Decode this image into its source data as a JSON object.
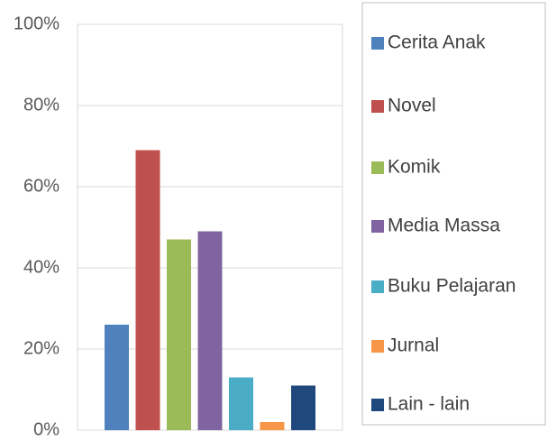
{
  "chart_data": {
    "type": "bar",
    "categories": [
      null
    ],
    "series": [
      {
        "name": "Cerita Anak",
        "color": "#4f81bd",
        "values": [
          26
        ]
      },
      {
        "name": "Novel",
        "color": "#c0504d",
        "values": [
          69
        ]
      },
      {
        "name": "Komik",
        "color": "#9bbb59",
        "values": [
          47
        ]
      },
      {
        "name": "Media Massa",
        "color": "#8064a2",
        "values": [
          49
        ]
      },
      {
        "name": "Buku Pelajaran",
        "color": "#4bacc6",
        "values": [
          13
        ]
      },
      {
        "name": "Jurnal",
        "color": "#f79646",
        "values": [
          2
        ]
      },
      {
        "name": "Lain - lain",
        "color": "#1f497d",
        "values": [
          11
        ]
      }
    ],
    "ylim": [
      0,
      100
    ],
    "yticks": [
      {
        "value": 0,
        "label": "0%"
      },
      {
        "value": 20,
        "label": "20%"
      },
      {
        "value": 40,
        "label": "40%"
      },
      {
        "value": 60,
        "label": "60%"
      },
      {
        "value": 80,
        "label": "80%"
      },
      {
        "value": 100,
        "label": "100%"
      }
    ],
    "grid": true,
    "legend": "right"
  }
}
